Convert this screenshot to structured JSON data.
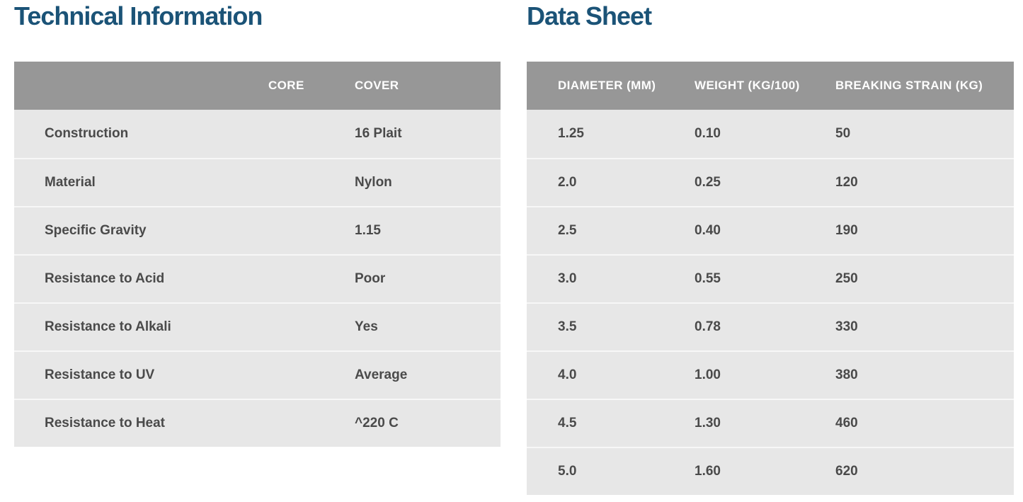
{
  "page": {
    "background": "#ffffff",
    "title_color": "#1b5377",
    "table_header_bg": "#979797",
    "table_header_text_color": "#ffffff",
    "table_body_bg": "#e7e7e7",
    "row_separator_color": "#f7f7f7",
    "cell_text_color": "#4a4a4a"
  },
  "technical_information": {
    "title": "Technical Information",
    "columns": [
      "",
      "CORE",
      "COVER"
    ],
    "rows": [
      {
        "label": "Construction",
        "core": "",
        "cover": "16 Plait"
      },
      {
        "label": "Material",
        "core": "",
        "cover": "Nylon"
      },
      {
        "label": "Specific Gravity",
        "core": "",
        "cover": "1.15"
      },
      {
        "label": "Resistance to Acid",
        "core": "",
        "cover": "Poor"
      },
      {
        "label": "Resistance to Alkali",
        "core": "",
        "cover": "Yes"
      },
      {
        "label": "Resistance to UV",
        "core": "",
        "cover": "Average"
      },
      {
        "label": "Resistance to Heat",
        "core": "",
        "cover": "^220 C"
      }
    ]
  },
  "data_sheet": {
    "title": "Data Sheet",
    "columns": [
      "DIAMETER (MM)",
      "WEIGHT (KG/100)",
      "BREAKING STRAIN (KG)"
    ],
    "rows": [
      [
        "1.25",
        "0.10",
        "50"
      ],
      [
        "2.0",
        "0.25",
        "120"
      ],
      [
        "2.5",
        "0.40",
        "190"
      ],
      [
        "3.0",
        "0.55",
        "250"
      ],
      [
        "3.5",
        "0.78",
        "330"
      ],
      [
        "4.0",
        "1.00",
        "380"
      ],
      [
        "4.5",
        "1.30",
        "460"
      ],
      [
        "5.0",
        "1.60",
        "620"
      ]
    ]
  }
}
